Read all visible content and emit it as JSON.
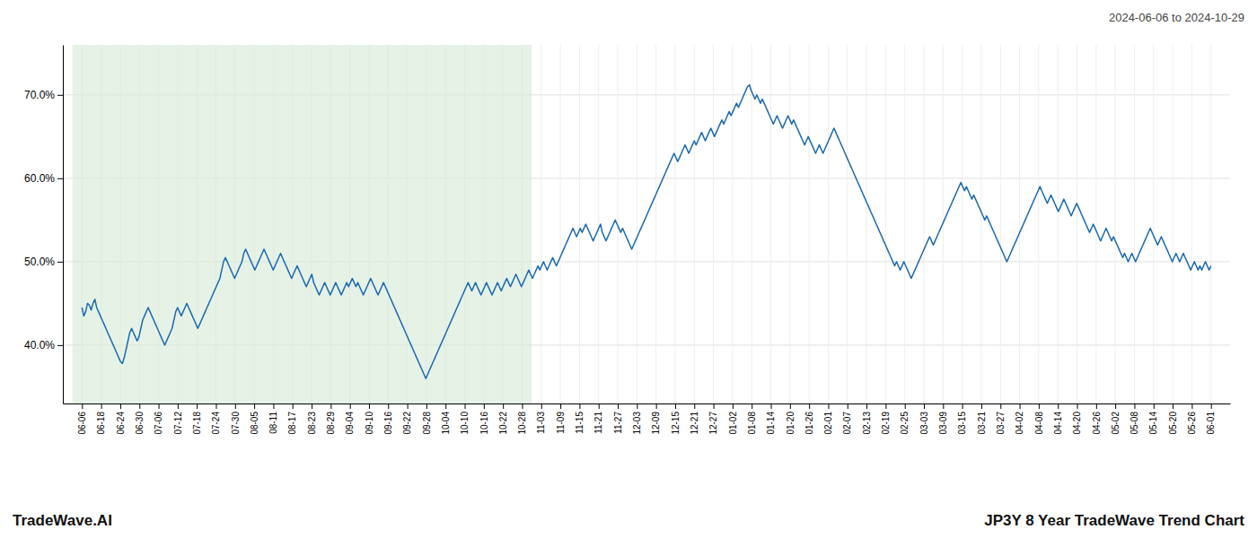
{
  "chart_data": {
    "type": "line",
    "title": "JP3Y 8 Year TradeWave Trend Chart",
    "subtitle": "2024-06-06 to 2024-10-29",
    "annotations": [
      "TradeWave.AI"
    ],
    "color": "#1a6ab0",
    "grid": true,
    "shade": {
      "from": -5.2034,
      "to": 244.5593,
      "color": "#d6ead6"
    },
    "xlim": [
      -10.4068,
      624.4068
    ],
    "xticks": [
      {
        "value": 0,
        "label": "06-06"
      },
      {
        "value": 10.4068,
        "label": "06-18"
      },
      {
        "value": 20.8136,
        "label": "06-24"
      },
      {
        "value": 31.2203,
        "label": "06-30"
      },
      {
        "value": 41.6271,
        "label": "07-06"
      },
      {
        "value": 52.0339,
        "label": "07-12"
      },
      {
        "value": 62.4407,
        "label": "07-18"
      },
      {
        "value": 72.8475,
        "label": "07-24"
      },
      {
        "value": 83.2542,
        "label": "07-30"
      },
      {
        "value": 93.661,
        "label": "08-05"
      },
      {
        "value": 104.0678,
        "label": "08-11"
      },
      {
        "value": 114.4746,
        "label": "08-17"
      },
      {
        "value": 124.8814,
        "label": "08-23"
      },
      {
        "value": 135.2881,
        "label": "08-29"
      },
      {
        "value": 145.6949,
        "label": "09-04"
      },
      {
        "value": 156.1017,
        "label": "09-10"
      },
      {
        "value": 166.5085,
        "label": "09-16"
      },
      {
        "value": 176.9153,
        "label": "09-22"
      },
      {
        "value": 187.322,
        "label": "09-28"
      },
      {
        "value": 197.7288,
        "label": "10-04"
      },
      {
        "value": 208.1356,
        "label": "10-10"
      },
      {
        "value": 218.5424,
        "label": "10-16"
      },
      {
        "value": 228.9492,
        "label": "10-22"
      },
      {
        "value": 239.3559,
        "label": "10-28"
      },
      {
        "value": 249.7627,
        "label": "11-03"
      },
      {
        "value": 260.1695,
        "label": "11-09"
      },
      {
        "value": 270.5763,
        "label": "11-15"
      },
      {
        "value": 280.9831,
        "label": "11-21"
      },
      {
        "value": 291.3898,
        "label": "11-27"
      },
      {
        "value": 301.7966,
        "label": "12-03"
      },
      {
        "value": 312.2034,
        "label": "12-09"
      },
      {
        "value": 322.6102,
        "label": "12-15"
      },
      {
        "value": 333.0169,
        "label": "12-21"
      },
      {
        "value": 343.4237,
        "label": "12-27"
      },
      {
        "value": 353.8305,
        "label": "01-02"
      },
      {
        "value": 364.2373,
        "label": "01-08"
      },
      {
        "value": 374.6441,
        "label": "01-14"
      },
      {
        "value": 385.0508,
        "label": "01-20"
      },
      {
        "value": 395.4576,
        "label": "01-26"
      },
      {
        "value": 405.8644,
        "label": "02-01"
      },
      {
        "value": 416.2712,
        "label": "02-07"
      },
      {
        "value": 426.678,
        "label": "02-13"
      },
      {
        "value": 437.0847,
        "label": "02-19"
      },
      {
        "value": 447.4915,
        "label": "02-25"
      },
      {
        "value": 457.8983,
        "label": "03-03"
      },
      {
        "value": 468.3051,
        "label": "03-09"
      },
      {
        "value": 478.7119,
        "label": "03-15"
      },
      {
        "value": 489.1186,
        "label": "03-21"
      },
      {
        "value": 499.5254,
        "label": "03-27"
      },
      {
        "value": 509.9322,
        "label": "04-02"
      },
      {
        "value": 520.339,
        "label": "04-08"
      },
      {
        "value": 530.7458,
        "label": "04-14"
      },
      {
        "value": 541.1525,
        "label": "04-20"
      },
      {
        "value": 551.5593,
        "label": "04-26"
      },
      {
        "value": 561.9661,
        "label": "05-02"
      },
      {
        "value": 572.3729,
        "label": "05-08"
      },
      {
        "value": 582.7797,
        "label": "05-14"
      },
      {
        "value": 593.1864,
        "label": "05-20"
      },
      {
        "value": 603.5932,
        "label": "05-26"
      },
      {
        "value": 614,
        "label": "06-01"
      }
    ],
    "ylim": [
      33,
      76
    ],
    "yticks": [
      {
        "value": 40.0,
        "label": "40.0%"
      },
      {
        "value": 50.0,
        "label": "50.0%"
      },
      {
        "value": 60.0,
        "label": "60.0%"
      },
      {
        "value": 70.0,
        "label": "70.0%"
      }
    ],
    "values": [
      44.5,
      43.5,
      44.0,
      45.0,
      44.8,
      44.2,
      45.0,
      45.5,
      44.5,
      44.0,
      43.5,
      43.0,
      42.5,
      42.0,
      41.5,
      41.0,
      40.5,
      40.0,
      39.5,
      39.0,
      38.5,
      38.0,
      37.8,
      38.5,
      39.5,
      40.5,
      41.5,
      42.0,
      41.5,
      41.0,
      40.5,
      41.0,
      42.0,
      43.0,
      43.5,
      44.0,
      44.5,
      44.0,
      43.5,
      43.0,
      42.5,
      42.0,
      41.5,
      41.0,
      40.5,
      40.0,
      40.5,
      41.0,
      41.5,
      42.0,
      43.0,
      44.0,
      44.5,
      44.0,
      43.5,
      44.0,
      44.5,
      45.0,
      44.5,
      44.0,
      43.5,
      43.0,
      42.5,
      42.0,
      42.5,
      43.0,
      43.5,
      44.0,
      44.5,
      45.0,
      45.5,
      46.0,
      46.5,
      47.0,
      47.5,
      48.0,
      49.0,
      50.0,
      50.5,
      50.0,
      49.5,
      49.0,
      48.5,
      48.0,
      48.5,
      49.0,
      49.5,
      50.0,
      51.0,
      51.5,
      51.0,
      50.5,
      50.0,
      49.5,
      49.0,
      49.5,
      50.0,
      50.5,
      51.0,
      51.5,
      51.0,
      50.5,
      50.0,
      49.5,
      49.0,
      49.5,
      50.0,
      50.5,
      51.0,
      50.5,
      50.0,
      49.5,
      49.0,
      48.5,
      48.0,
      48.5,
      49.0,
      49.5,
      49.0,
      48.5,
      48.0,
      47.5,
      47.0,
      47.5,
      48.0,
      48.5,
      47.5,
      47.0,
      46.5,
      46.0,
      46.5,
      47.0,
      47.5,
      47.0,
      46.5,
      46.0,
      46.5,
      47.0,
      47.5,
      47.0,
      46.5,
      46.0,
      46.5,
      47.0,
      47.5,
      47.0,
      47.5,
      48.0,
      47.5,
      47.0,
      47.5,
      47.0,
      46.5,
      46.0,
      46.5,
      47.0,
      47.5,
      48.0,
      47.5,
      47.0,
      46.5,
      46.0,
      46.5,
      47.0,
      47.5,
      47.0,
      46.5,
      46.0,
      45.5,
      45.0,
      44.5,
      44.0,
      43.5,
      43.0,
      42.5,
      42.0,
      41.5,
      41.0,
      40.5,
      40.0,
      39.5,
      39.0,
      38.5,
      38.0,
      37.5,
      37.0,
      36.5,
      36.0,
      36.5,
      37.0,
      37.5,
      38.0,
      38.5,
      39.0,
      39.5,
      40.0,
      40.5,
      41.0,
      41.5,
      42.0,
      42.5,
      43.0,
      43.5,
      44.0,
      44.5,
      45.0,
      45.5,
      46.0,
      46.5,
      47.0,
      47.5,
      47.0,
      46.5,
      47.0,
      47.5,
      47.0,
      46.5,
      46.0,
      46.5,
      47.0,
      47.5,
      47.0,
      46.5,
      46.0,
      46.5,
      47.0,
      47.5,
      47.0,
      46.5,
      47.0,
      47.5,
      48.0,
      47.5,
      47.0,
      47.5,
      48.0,
      48.5,
      48.0,
      47.5,
      47.0,
      47.5,
      48.0,
      48.5,
      49.0,
      48.5,
      48.0,
      48.5,
      49.0,
      49.5,
      49.0,
      49.5,
      50.0,
      49.5,
      49.0,
      49.5,
      50.0,
      50.5,
      50.0,
      49.5,
      50.0,
      50.5,
      51.0,
      51.5,
      52.0,
      52.5,
      53.0,
      53.5,
      54.0,
      53.5,
      53.0,
      53.5,
      54.0,
      53.5,
      54.0,
      54.5,
      54.0,
      53.5,
      53.0,
      52.5,
      53.0,
      53.5,
      54.0,
      54.5,
      53.5,
      53.0,
      52.5,
      53.0,
      53.5,
      54.0,
      54.5,
      55.0,
      54.5,
      54.0,
      53.5,
      54.0,
      53.5,
      53.0,
      52.5,
      52.0,
      51.5,
      52.0,
      52.5,
      53.0,
      53.5,
      54.0,
      54.5,
      55.0,
      55.5,
      56.0,
      56.5,
      57.0,
      57.5,
      58.0,
      58.5,
      59.0,
      59.5,
      60.0,
      60.5,
      61.0,
      61.5,
      62.0,
      62.5,
      63.0,
      62.5,
      62.0,
      62.5,
      63.0,
      63.5,
      64.0,
      63.5,
      63.0,
      63.5,
      64.0,
      64.5,
      64.0,
      64.5,
      65.0,
      65.5,
      65.0,
      64.5,
      65.0,
      65.5,
      66.0,
      65.5,
      65.0,
      65.5,
      66.0,
      66.5,
      67.0,
      66.5,
      67.0,
      67.5,
      68.0,
      67.5,
      68.0,
      68.5,
      69.0,
      68.5,
      69.0,
      69.5,
      70.0,
      70.5,
      71.0,
      71.2,
      70.5,
      70.0,
      69.5,
      70.0,
      69.5,
      69.0,
      69.5,
      69.0,
      68.5,
      68.0,
      67.5,
      67.0,
      66.5,
      67.0,
      67.5,
      67.0,
      66.5,
      66.0,
      66.5,
      67.0,
      67.5,
      67.0,
      66.5,
      67.0,
      66.5,
      66.0,
      65.5,
      65.0,
      64.5,
      64.0,
      64.5,
      65.0,
      64.5,
      64.0,
      63.5,
      63.0,
      63.5,
      64.0,
      63.5,
      63.0,
      63.5,
      64.0,
      64.5,
      65.0,
      65.5,
      66.0,
      65.5,
      65.0,
      64.5,
      64.0,
      63.5,
      63.0,
      62.5,
      62.0,
      61.5,
      61.0,
      60.5,
      60.0,
      59.5,
      59.0,
      58.5,
      58.0,
      57.5,
      57.0,
      56.5,
      56.0,
      55.5,
      55.0,
      54.5,
      54.0,
      53.5,
      53.0,
      52.5,
      52.0,
      51.5,
      51.0,
      50.5,
      50.0,
      49.5,
      50.0,
      49.5,
      49.0,
      49.5,
      50.0,
      49.5,
      49.0,
      48.5,
      48.0,
      48.5,
      49.0,
      49.5,
      50.0,
      50.5,
      51.0,
      51.5,
      52.0,
      52.5,
      53.0,
      52.5,
      52.0,
      52.5,
      53.0,
      53.5,
      54.0,
      54.5,
      55.0,
      55.5,
      56.0,
      56.5,
      57.0,
      57.5,
      58.0,
      58.5,
      59.0,
      59.5,
      59.0,
      58.5,
      59.0,
      58.5,
      58.0,
      57.5,
      58.0,
      57.5,
      57.0,
      56.5,
      56.0,
      55.5,
      55.0,
      55.5,
      55.0,
      54.5,
      54.0,
      53.5,
      53.0,
      52.5,
      52.0,
      51.5,
      51.0,
      50.5,
      50.0,
      50.5,
      51.0,
      51.5,
      52.0,
      52.5,
      53.0,
      53.5,
      54.0,
      54.5,
      55.0,
      55.5,
      56.0,
      56.5,
      57.0,
      57.5,
      58.0,
      58.5,
      59.0,
      58.5,
      58.0,
      57.5,
      57.0,
      57.5,
      58.0,
      57.5,
      57.0,
      56.5,
      56.0,
      56.5,
      57.0,
      57.5,
      57.0,
      56.5,
      56.0,
      55.5,
      56.0,
      56.5,
      57.0,
      56.5,
      56.0,
      55.5,
      55.0,
      54.5,
      54.0,
      53.5,
      54.0,
      54.5,
      54.0,
      53.5,
      53.0,
      52.5,
      53.0,
      53.5,
      54.0,
      53.5,
      53.0,
      52.5,
      53.0,
      52.5,
      52.0,
      51.5,
      51.0,
      50.5,
      51.0,
      50.5,
      50.0,
      50.5,
      51.0,
      50.5,
      50.0,
      50.5,
      51.0,
      51.5,
      52.0,
      52.5,
      53.0,
      53.5,
      54.0,
      53.5,
      53.0,
      52.5,
      52.0,
      52.5,
      53.0,
      52.5,
      52.0,
      51.5,
      51.0,
      50.5,
      50.0,
      50.5,
      51.0,
      50.5,
      50.0,
      50.5,
      51.0,
      50.5,
      50.0,
      49.5,
      49.0,
      49.5,
      50.0,
      49.5,
      49.0,
      49.5,
      49.0,
      49.5,
      50.0,
      49.5,
      49.0,
      49.5
    ]
  }
}
